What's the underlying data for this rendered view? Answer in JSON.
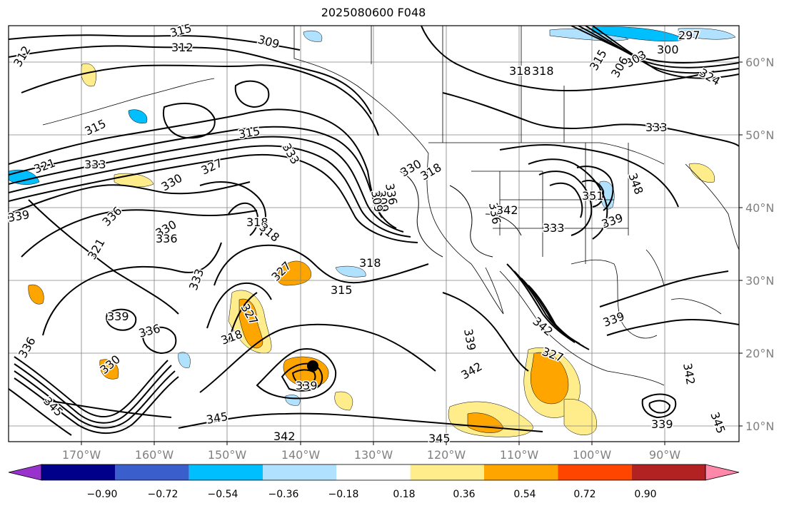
{
  "title": "2025080600 F048",
  "lon_labels": [
    "170°W",
    "160°W",
    "150°W",
    "140°W",
    "130°W",
    "120°W",
    "110°W",
    "100°W",
    "90°W"
  ],
  "lat_labels": [
    "60°N",
    "50°N",
    "40°N",
    "30°N",
    "20°N",
    "10°N"
  ],
  "contour_labels": [
    "312",
    "315",
    "312",
    "309",
    "315",
    "309",
    "315",
    "333",
    "327",
    "321",
    "333",
    "330",
    "336",
    "339",
    "330",
    "318",
    "318",
    "309",
    "318",
    "321",
    "318",
    "315",
    "327",
    "333",
    "327",
    "339",
    "336",
    "336",
    "318",
    "339",
    "330",
    "345",
    "345",
    "342",
    "336",
    "342",
    "339",
    "345",
    "342",
    "339",
    "342",
    "339",
    "345",
    "333",
    "348",
    "339",
    "336",
    "342",
    "327",
    "330",
    "336",
    "318",
    "297",
    "300",
    "303",
    "306",
    "315",
    "318",
    "324",
    "333",
    "351"
  ],
  "colorbar": {
    "colors": [
      "#9932cc",
      "#00008b",
      "#3a5fcd",
      "#00bfff",
      "#b0e2ff",
      "#ffffff",
      "#ffec8b",
      "#ffa500",
      "#ff4500",
      "#b22222",
      "#ff88aa"
    ],
    "ticks": [
      "−0.90",
      "−0.72",
      "−0.54",
      "−0.36",
      "−0.18",
      "0.18",
      "0.36",
      "0.54",
      "0.72",
      "0.90"
    ]
  },
  "shading_colors": {
    "pos1": "#ffec8b",
    "pos2": "#ffa500",
    "neg1": "#b0e2ff",
    "neg2": "#00bfff",
    "neg3": "#3a5fcd"
  },
  "storm_marker": "storm-center"
}
